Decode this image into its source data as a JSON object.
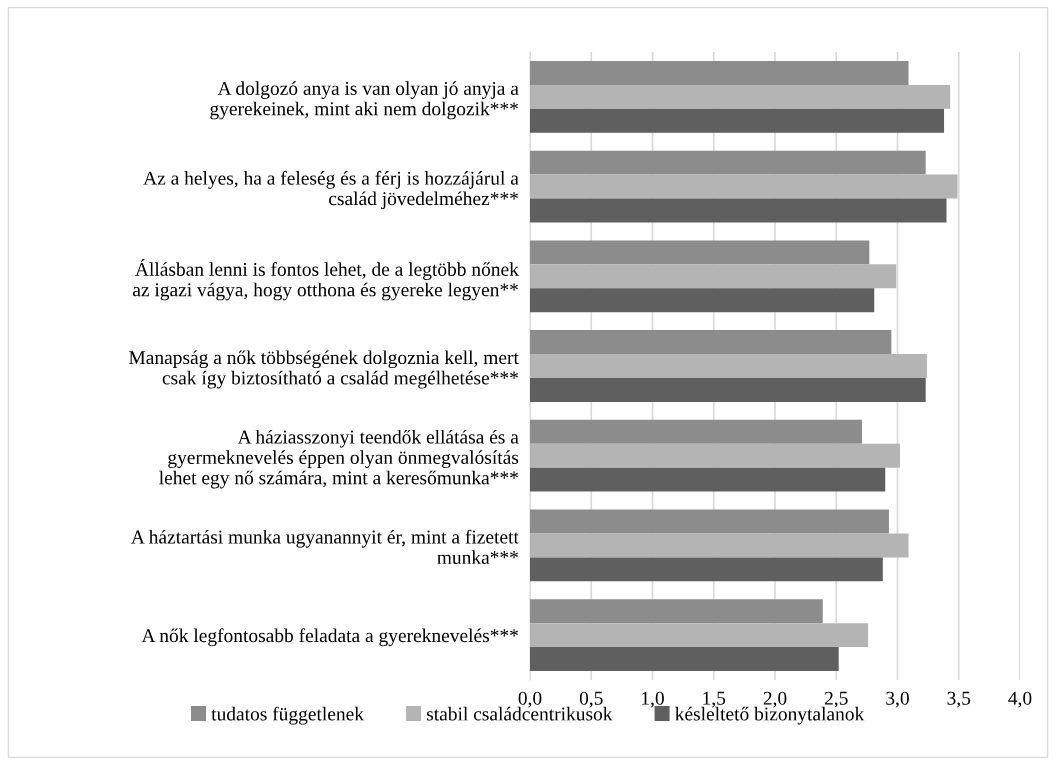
{
  "chart_data": {
    "type": "bar",
    "orientation": "horizontal",
    "categories": [
      "A dolgozó anya is van olyan jó anyja a\ngyerekeinek, mint aki nem dolgozik***",
      "Az a helyes, ha a feleség és a férj is hozzájárul a\ncsalád jövedelméhez***",
      "Állásban lenni is fontos lehet, de a legtöbb nőnek\naz igazi vágya, hogy otthona és gyereke legyen**",
      "Manapság a nők többségének dolgoznia kell, mert\ncsak így biztosítható a család megélhetése***",
      "A háziasszonyi teendők ellátása és a\ngyermeknevelés éppen olyan önmegvalósítás\nlehet egy nő számára, mint a keresőmunka***",
      "A háztartási munka ugyanannyit ér, mint a fizetett\nmunka***",
      "A nők legfontosabb feladata a gyereknevelés***"
    ],
    "series": [
      {
        "name": "tudatos függetlenek",
        "color": "#8c8c8c",
        "values": [
          3.09,
          3.23,
          2.77,
          2.95,
          2.71,
          2.93,
          2.39
        ]
      },
      {
        "name": "stabil családcentrikusok",
        "color": "#b4b4b4",
        "values": [
          3.43,
          3.49,
          2.99,
          3.24,
          3.02,
          3.09,
          2.76
        ]
      },
      {
        "name": "késleltető bizonytalanok",
        "color": "#5f5f5f",
        "values": [
          3.38,
          3.4,
          2.81,
          3.23,
          2.9,
          2.88,
          2.52
        ]
      }
    ],
    "xlim": [
      0,
      4
    ],
    "xticks": [
      {
        "value": 0,
        "label": "0,0"
      },
      {
        "value": 0.5,
        "label": "0,5"
      },
      {
        "value": 1,
        "label": "1,0"
      },
      {
        "value": 1.5,
        "label": "1,5"
      },
      {
        "value": 2,
        "label": "2,0"
      },
      {
        "value": 2.5,
        "label": "2,5"
      },
      {
        "value": 3,
        "label": "3,0"
      },
      {
        "value": 3.5,
        "label": "3,5"
      },
      {
        "value": 4,
        "label": "4,0"
      }
    ],
    "grid": "x",
    "legend": "bottom"
  }
}
